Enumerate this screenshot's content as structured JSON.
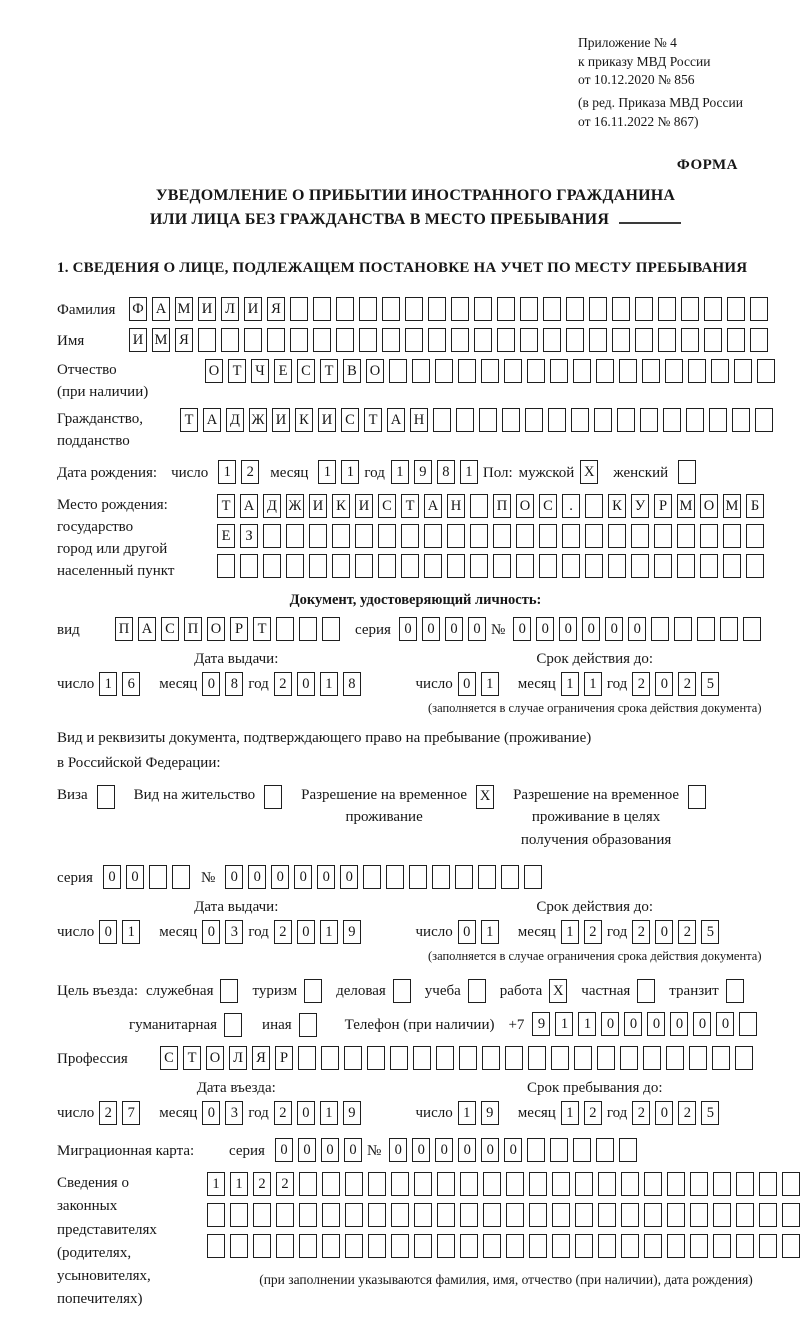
{
  "top_note": {
    "lines": [
      "Приложение № 4",
      "к приказу МВД России",
      "от 10.12.2020 № 856"
    ],
    "sub_lines": [
      "(в ред. Приказа МВД России",
      "от 16.11.2022 № 867)"
    ],
    "form_label": "ФОРМА"
  },
  "title": {
    "line1": "УВЕДОМЛЕНИЕ О ПРИБЫТИИ ИНОСТРАННОГО ГРАЖДАНИНА",
    "line2": "ИЛИ ЛИЦА БЕЗ ГРАЖДАНСТВА В МЕСТО ПРЕБЫВАНИЯ"
  },
  "section1_title": "1. СВЕДЕНИЯ О ЛИЦЕ, ПОДЛЕЖАЩЕМ ПОСТАНОВКЕ НА УЧЕТ ПО МЕСТУ ПРЕБЫВАНИЯ",
  "date_labels": {
    "day": "число",
    "month": "месяц",
    "year": "год"
  },
  "surname": {
    "label": "Фамилия",
    "cells": {
      "value": "ФАМИЛИЯ",
      "total": 28
    }
  },
  "given_name": {
    "label": "Имя",
    "cells": {
      "value": "ИМЯ",
      "total": 28
    }
  },
  "patronymic": {
    "label": "Отчество",
    "label_note": "(при наличии)",
    "cells": {
      "value": "ОТЧЕСТВО",
      "total": 25
    }
  },
  "citizenship": {
    "label": "Гражданство,",
    "label2": "подданство",
    "cells": {
      "value": "ТАДЖИКИСТАН",
      "total": 26
    }
  },
  "birth_date": {
    "label": "Дата рождения:",
    "day": {
      "value": "12",
      "total": 2
    },
    "month": {
      "value": "11",
      "total": 2
    },
    "year": {
      "value": "1981",
      "total": 4
    },
    "sex_label": "Пол:",
    "male_label": "мужской",
    "male": {
      "value": "X",
      "total": 1
    },
    "female_label": "женский",
    "female": {
      "value": "",
      "total": 1
    }
  },
  "birth_place": {
    "label1": "Место рождения:",
    "label2": "государство",
    "label3": "город или другой",
    "label4": "населенный пункт",
    "row1": {
      "value": "ТАДЖИКИСТАН ПОС. КУРМОМБ",
      "total": 24
    },
    "row2": {
      "value": "ЕЗ",
      "total": 24
    },
    "row3": {
      "value": "",
      "total": 24
    }
  },
  "identity_doc": {
    "header": "Документ, удостоверяющий личность:",
    "type_label": "вид",
    "type": {
      "value": "ПАСПОРТ",
      "total": 10
    },
    "series_label": "серия",
    "series": {
      "value": "0000",
      "total": 4
    },
    "number_label": "№",
    "number": {
      "value": "000000",
      "total": 11
    },
    "issue_title": "Дата выдачи:",
    "issue": {
      "day": {
        "value": "16",
        "total": 2
      },
      "month": {
        "value": "08",
        "total": 2
      },
      "year": {
        "value": "2018",
        "total": 4
      }
    },
    "expiry_title": "Срок действия до:",
    "expiry": {
      "day": {
        "value": "01",
        "total": 2
      },
      "month": {
        "value": "11",
        "total": 2
      },
      "year": {
        "value": "2025",
        "total": 4
      }
    },
    "expiry_note": "(заполняется в случае ограничения срока действия документа)"
  },
  "residence_doc": {
    "intro1": "Вид и реквизиты документа, подтверждающего право на пребывание (проживание)",
    "intro2": "в Российской Федерации:",
    "visa_label": "Виза",
    "visa": {
      "value": "",
      "total": 1
    },
    "permit_label": "Вид на жительство",
    "permit": {
      "value": "",
      "total": 1
    },
    "temp_label1": "Разрешение на временное",
    "temp_label2": "проживание",
    "temp": {
      "value": "X",
      "total": 1
    },
    "edu_label1": "Разрешение на временное",
    "edu_label2": "проживание в целях",
    "edu_label3": "получения образования",
    "edu": {
      "value": "",
      "total": 1
    },
    "series_label": "серия",
    "series": {
      "value": "00",
      "total": 4
    },
    "number_label": "№",
    "number": {
      "value": "000000",
      "total": 14
    },
    "issue_title": "Дата выдачи:",
    "issue": {
      "day": {
        "value": "01",
        "total": 2
      },
      "month": {
        "value": "03",
        "total": 2
      },
      "year": {
        "value": "2019",
        "total": 4
      }
    },
    "expiry_title": "Срок действия до:",
    "expiry": {
      "day": {
        "value": "01",
        "total": 2
      },
      "month": {
        "value": "12",
        "total": 2
      },
      "year": {
        "value": "2025",
        "total": 4
      }
    },
    "expiry_note": "(заполняется в случае ограничения срока действия документа)"
  },
  "purpose": {
    "label": "Цель въезда:",
    "opts1": [
      {
        "label": "служебная",
        "box": {
          "value": "",
          "total": 1
        }
      },
      {
        "label": "туризм",
        "box": {
          "value": "",
          "total": 1
        }
      },
      {
        "label": "деловая",
        "box": {
          "value": "",
          "total": 1
        }
      },
      {
        "label": "учеба",
        "box": {
          "value": "",
          "total": 1
        }
      },
      {
        "label": "работа",
        "box": {
          "value": "X",
          "total": 1
        }
      },
      {
        "label": "частная",
        "box": {
          "value": "",
          "total": 1
        }
      },
      {
        "label": "транзит",
        "box": {
          "value": "",
          "total": 1
        }
      }
    ],
    "opts2": [
      {
        "label": "гуманитарная",
        "box": {
          "value": "",
          "total": 1
        }
      },
      {
        "label": "иная",
        "box": {
          "value": "",
          "total": 1
        }
      }
    ],
    "phone_label": "Телефон (при наличии)",
    "phone_prefix": "+7",
    "phone": {
      "value": "911000000",
      "total": 10
    }
  },
  "profession": {
    "label": "Профессия",
    "cells": {
      "value": "СТОЛЯР",
      "total": 26
    }
  },
  "entry_date": {
    "title": "Дата въезда:",
    "day": {
      "value": "27",
      "total": 2
    },
    "month": {
      "value": "03",
      "total": 2
    },
    "year": {
      "value": "2019",
      "total": 4
    }
  },
  "stay_until": {
    "title": "Срок пребывания до:",
    "day": {
      "value": "19",
      "total": 2
    },
    "month": {
      "value": "12",
      "total": 2
    },
    "year": {
      "value": "2025",
      "total": 4
    }
  },
  "migration_card": {
    "label": "Миграционная карта:",
    "series_label": "серия",
    "series": {
      "value": "0000",
      "total": 4
    },
    "number_label": "№",
    "number": {
      "value": "000000",
      "total": 11
    }
  },
  "legal_reps": {
    "labels": [
      "Сведения о",
      "законных",
      "представителях",
      "(родителях,",
      "усыновителях,",
      "попечителях)"
    ],
    "row1": {
      "value": "1122",
      "total": 26
    },
    "row2": {
      "value": "",
      "total": 26
    },
    "row3": {
      "value": "",
      "total": 26
    },
    "note": "(при заполнении указываются фамилия, имя, отчество (при наличии), дата рождения)"
  }
}
